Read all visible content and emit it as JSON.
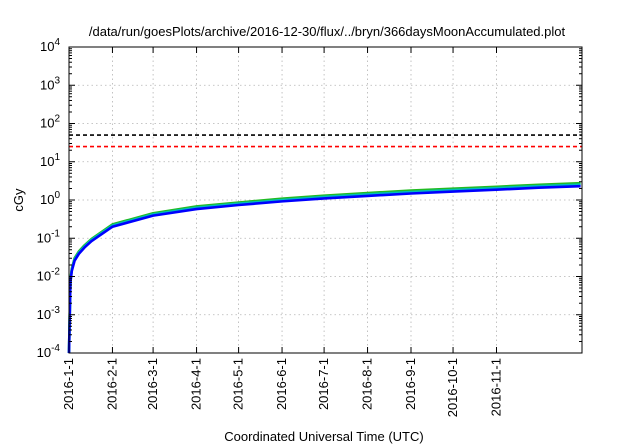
{
  "chart_data": {
    "type": "line",
    "title": "/data/run/goesPlots/archive/2016-12-30/flux/../bryn/366daysMoonAccumulated.plot",
    "xlabel": "Coordinated Universal Time (UTC)",
    "ylabel": "cGy",
    "yscale": "log",
    "ylim": [
      0.0001,
      10000
    ],
    "xlim": [
      "2016-01-01",
      "2017-01-01"
    ],
    "grid": true,
    "x_ticks": [
      "2016-1-1",
      "2016-2-1",
      "2016-3-1",
      "2016-4-1",
      "2016-5-1",
      "2016-6-1",
      "2016-7-1",
      "2016-8-1",
      "2016-9-1",
      "2016-10-1",
      "2016-11-1"
    ],
    "y_ticks": [
      {
        "value": 0.0001,
        "base": "10",
        "exp": "-4"
      },
      {
        "value": 0.001,
        "base": "10",
        "exp": "-3"
      },
      {
        "value": 0.01,
        "base": "10",
        "exp": "-2"
      },
      {
        "value": 0.1,
        "base": "10",
        "exp": "-1"
      },
      {
        "value": 1,
        "base": "10",
        "exp": "0"
      },
      {
        "value": 10,
        "base": "10",
        "exp": "1"
      },
      {
        "value": 100,
        "base": "10",
        "exp": "2"
      },
      {
        "value": 1000,
        "base": "10",
        "exp": "3"
      },
      {
        "value": 10000,
        "base": "10",
        "exp": "4"
      }
    ],
    "reference_lines": [
      {
        "value": 50,
        "color": "#000000",
        "style": "dashed"
      },
      {
        "value": 25,
        "color": "#ff0000",
        "style": "dashed"
      }
    ],
    "series": [
      {
        "color": "#22bb22",
        "x": [
          "2016-01-01",
          "2016-01-02",
          "2016-01-03",
          "2016-01-05",
          "2016-01-08",
          "2016-01-12",
          "2016-01-17",
          "2016-02-01",
          "2016-03-01",
          "2016-04-01",
          "2016-05-01",
          "2016-06-01",
          "2016-07-01",
          "2016-08-01",
          "2016-09-01",
          "2016-10-01",
          "2016-11-01",
          "2016-12-01",
          "2016-12-31"
        ],
        "values": [
          0.0001,
          0.008,
          0.016,
          0.03,
          0.045,
          0.065,
          0.095,
          0.23,
          0.45,
          0.68,
          0.86,
          1.08,
          1.3,
          1.52,
          1.76,
          1.98,
          2.22,
          2.5,
          2.75
        ]
      },
      {
        "color": "#00bbbb",
        "x": [
          "2016-01-01",
          "2016-01-02",
          "2016-01-03",
          "2016-01-05",
          "2016-01-08",
          "2016-01-12",
          "2016-01-17",
          "2016-02-01",
          "2016-03-01",
          "2016-04-01",
          "2016-05-01",
          "2016-06-01",
          "2016-07-01",
          "2016-08-01",
          "2016-09-01",
          "2016-10-01",
          "2016-11-01",
          "2016-12-01",
          "2016-12-31"
        ],
        "values": [
          0.0001,
          0.0075,
          0.015,
          0.028,
          0.042,
          0.061,
          0.09,
          0.215,
          0.42,
          0.63,
          0.8,
          1.0,
          1.2,
          1.4,
          1.62,
          1.82,
          2.04,
          2.3,
          2.52
        ]
      },
      {
        "color": "#0000ff",
        "x": [
          "2016-01-01",
          "2016-01-02",
          "2016-01-03",
          "2016-01-05",
          "2016-01-08",
          "2016-01-12",
          "2016-01-17",
          "2016-02-01",
          "2016-03-01",
          "2016-04-01",
          "2016-05-01",
          "2016-06-01",
          "2016-07-01",
          "2016-08-01",
          "2016-09-01",
          "2016-10-01",
          "2016-11-01",
          "2016-12-01",
          "2016-12-31"
        ],
        "values": [
          0.0001,
          0.007,
          0.014,
          0.026,
          0.039,
          0.057,
          0.084,
          0.2,
          0.39,
          0.58,
          0.74,
          0.92,
          1.1,
          1.28,
          1.48,
          1.66,
          1.86,
          2.1,
          2.3
        ]
      }
    ]
  }
}
